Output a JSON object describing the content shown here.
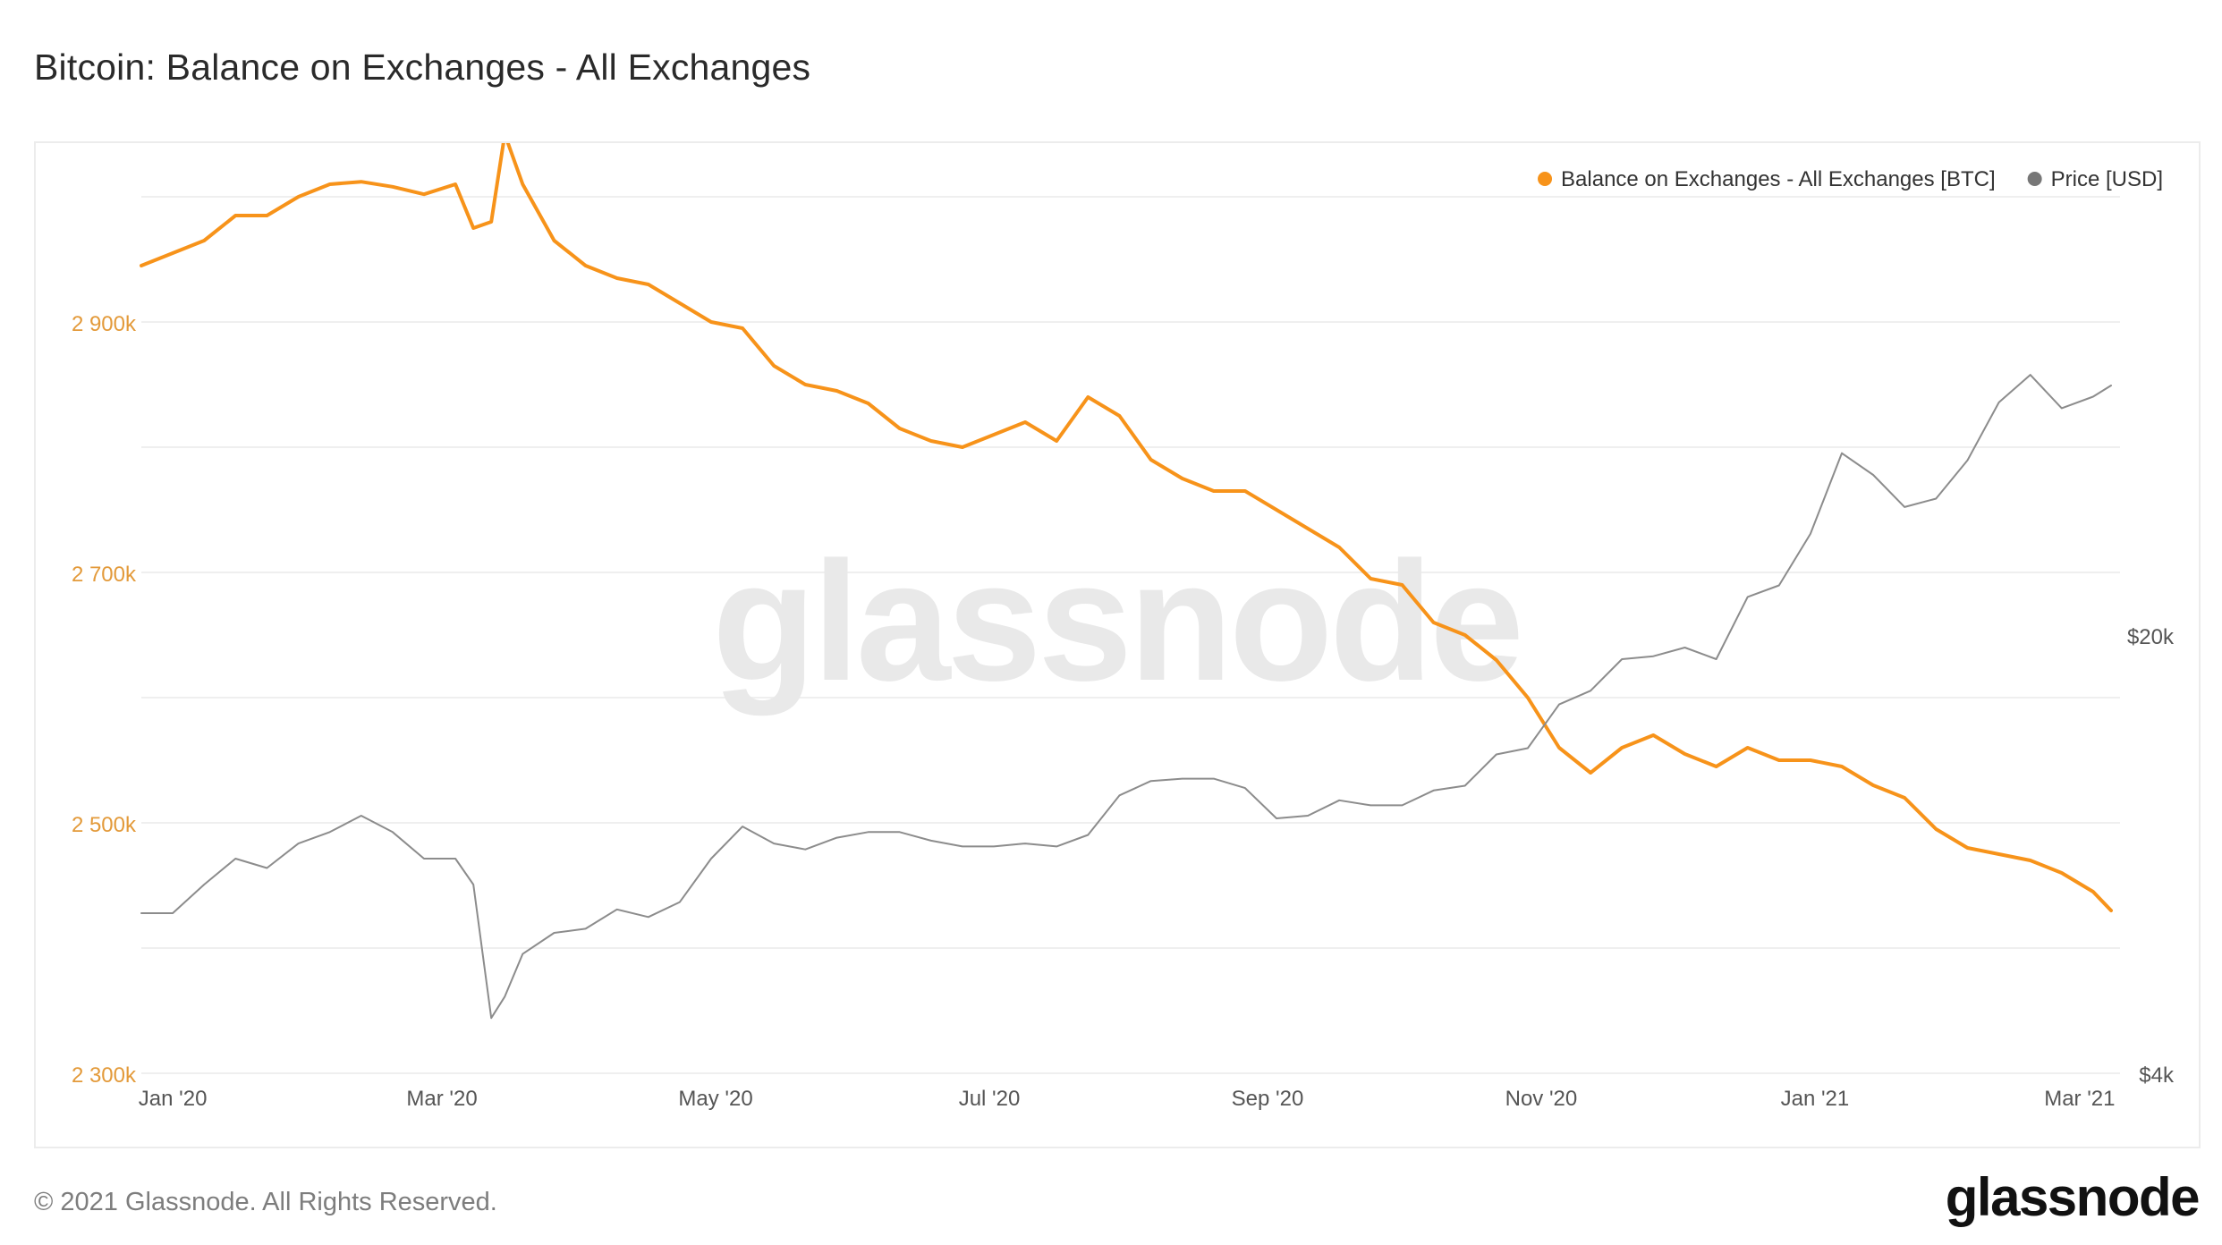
{
  "title": "Bitcoin: Balance on Exchanges - All Exchanges",
  "footer": {
    "copyright": "© 2021 Glassnode. All Rights Reserved.",
    "logo": "glassnode"
  },
  "watermark": "glassnode",
  "colors": {
    "balance": "#f7931a",
    "price": "#8c8c8c",
    "grid": "#efefef",
    "left_axis_text": "#e39a3a",
    "right_axis_text": "#555555"
  },
  "chart_data": {
    "type": "line",
    "title": "Bitcoin: Balance on Exchanges - All Exchanges",
    "legend_position": "top-right",
    "legend": [
      {
        "label": "Balance on Exchanges - All Exchanges [BTC]",
        "color": "#f7931a"
      },
      {
        "label": "Price [USD]",
        "color": "#777777"
      }
    ],
    "x_ticks": [
      "Jan '20",
      "Mar '20",
      "May '20",
      "Jul '20",
      "Sep '20",
      "Nov '20",
      "Jan '21",
      "Mar '21"
    ],
    "x_tick_dates": [
      "2020-01-01",
      "2020-03-01",
      "2020-05-01",
      "2020-07-01",
      "2020-09-01",
      "2020-11-01",
      "2021-01-01",
      "2021-03-01"
    ],
    "x_range": [
      "2019-12-25",
      "2021-03-10"
    ],
    "y_left": {
      "ticks": [
        "2 300k",
        "2 500k",
        "2 700k",
        "2 900k"
      ],
      "tick_values": [
        2300000,
        2500000,
        2700000,
        2900000
      ],
      "range": [
        2300000,
        3000000
      ]
    },
    "y_right": {
      "ticks": [
        "$4k",
        "$20k"
      ],
      "tick_values": [
        4000,
        20000
      ],
      "scale": "log",
      "range": [
        4000,
        100000
      ]
    },
    "grid": true,
    "series": [
      {
        "name": "Balance on Exchanges - All Exchanges [BTC]",
        "axis": "left",
        "dates": [
          "2019-12-25",
          "2020-01-01",
          "2020-01-08",
          "2020-01-15",
          "2020-01-22",
          "2020-01-29",
          "2020-02-05",
          "2020-02-12",
          "2020-02-19",
          "2020-02-26",
          "2020-03-04",
          "2020-03-08",
          "2020-03-12",
          "2020-03-15",
          "2020-03-19",
          "2020-03-26",
          "2020-04-02",
          "2020-04-09",
          "2020-04-16",
          "2020-04-23",
          "2020-04-30",
          "2020-05-07",
          "2020-05-14",
          "2020-05-21",
          "2020-05-28",
          "2020-06-04",
          "2020-06-11",
          "2020-06-18",
          "2020-06-25",
          "2020-07-02",
          "2020-07-09",
          "2020-07-16",
          "2020-07-23",
          "2020-07-30",
          "2020-08-06",
          "2020-08-13",
          "2020-08-20",
          "2020-08-27",
          "2020-09-03",
          "2020-09-10",
          "2020-09-17",
          "2020-09-24",
          "2020-10-01",
          "2020-10-08",
          "2020-10-15",
          "2020-10-22",
          "2020-10-29",
          "2020-11-05",
          "2020-11-12",
          "2020-11-19",
          "2020-11-26",
          "2020-12-03",
          "2020-12-10",
          "2020-12-17",
          "2020-12-24",
          "2020-12-31",
          "2021-01-07",
          "2021-01-14",
          "2021-01-21",
          "2021-01-28",
          "2021-02-04",
          "2021-02-11",
          "2021-02-18",
          "2021-02-25",
          "2021-03-04",
          "2021-03-08"
        ],
        "values": [
          2945000,
          2955000,
          2965000,
          2985000,
          2985000,
          3000000,
          3010000,
          3012000,
          3008000,
          3002000,
          3010000,
          2975000,
          2980000,
          3050000,
          3010000,
          2965000,
          2945000,
          2935000,
          2930000,
          2915000,
          2900000,
          2895000,
          2865000,
          2850000,
          2845000,
          2835000,
          2815000,
          2805000,
          2800000,
          2810000,
          2820000,
          2805000,
          2840000,
          2825000,
          2790000,
          2775000,
          2765000,
          2765000,
          2750000,
          2735000,
          2720000,
          2695000,
          2690000,
          2660000,
          2650000,
          2630000,
          2600000,
          2560000,
          2540000,
          2560000,
          2570000,
          2555000,
          2545000,
          2560000,
          2550000,
          2550000,
          2545000,
          2530000,
          2520000,
          2495000,
          2480000,
          2475000,
          2470000,
          2460000,
          2445000,
          2430000
        ]
      },
      {
        "name": "Price [USD]",
        "axis": "right",
        "dates": [
          "2019-12-25",
          "2020-01-01",
          "2020-01-08",
          "2020-01-15",
          "2020-01-22",
          "2020-01-29",
          "2020-02-05",
          "2020-02-12",
          "2020-02-19",
          "2020-02-26",
          "2020-03-04",
          "2020-03-08",
          "2020-03-12",
          "2020-03-15",
          "2020-03-19",
          "2020-03-26",
          "2020-04-02",
          "2020-04-09",
          "2020-04-16",
          "2020-04-23",
          "2020-04-30",
          "2020-05-07",
          "2020-05-14",
          "2020-05-21",
          "2020-05-28",
          "2020-06-04",
          "2020-06-11",
          "2020-06-18",
          "2020-06-25",
          "2020-07-02",
          "2020-07-09",
          "2020-07-16",
          "2020-07-23",
          "2020-07-30",
          "2020-08-06",
          "2020-08-13",
          "2020-08-20",
          "2020-08-27",
          "2020-09-03",
          "2020-09-10",
          "2020-09-17",
          "2020-09-24",
          "2020-10-01",
          "2020-10-08",
          "2020-10-15",
          "2020-10-22",
          "2020-10-29",
          "2020-11-05",
          "2020-11-12",
          "2020-11-19",
          "2020-11-26",
          "2020-12-03",
          "2020-12-10",
          "2020-12-17",
          "2020-12-24",
          "2020-12-31",
          "2021-01-07",
          "2021-01-14",
          "2021-01-21",
          "2021-01-28",
          "2021-02-04",
          "2021-02-11",
          "2021-02-18",
          "2021-02-25",
          "2021-03-04",
          "2021-03-08"
        ],
        "values": [
          7200,
          7200,
          8000,
          8800,
          8500,
          9300,
          9700,
          10300,
          9700,
          8800,
          8800,
          8000,
          4900,
          5300,
          6200,
          6700,
          6800,
          7300,
          7100,
          7500,
          8800,
          9900,
          9300,
          9100,
          9500,
          9700,
          9700,
          9400,
          9200,
          9200,
          9300,
          9200,
          9600,
          11100,
          11700,
          11800,
          11800,
          11400,
          10200,
          10300,
          10900,
          10700,
          10700,
          11300,
          11500,
          12900,
          13200,
          15500,
          16300,
          18300,
          18500,
          19100,
          18300,
          23000,
          24000,
          29000,
          39000,
          36000,
          32000,
          33000,
          38000,
          47000,
          52000,
          46000,
          48000,
          50000
        ]
      }
    ]
  }
}
